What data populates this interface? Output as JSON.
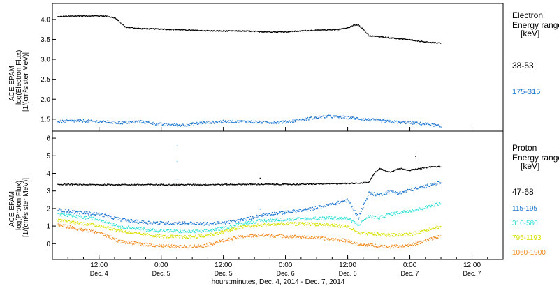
{
  "xaxis": {
    "title": "hours:minutes, Dec.  4, 2014 - Dec.  7, 2014",
    "ticks": [
      {
        "time": "12:00",
        "day": "Dec. 4",
        "h": 12
      },
      {
        "time": "0:00",
        "day": "Dec. 5",
        "h": 24
      },
      {
        "time": "12:00",
        "day": "Dec. 5",
        "h": 36
      },
      {
        "time": "0:00",
        "day": "Dec. 6",
        "h": 48
      },
      {
        "time": "12:00",
        "day": "Dec. 6",
        "h": 60
      },
      {
        "time": "0:00",
        "day": "Dec. 7",
        "h": 72
      },
      {
        "time": "12:00",
        "day": "Dec. 7",
        "h": 84
      }
    ]
  },
  "top_panel": {
    "ylabel_lines": [
      "ACE EPAM",
      "log(Electron Flux)",
      "[1/(cm²s ster MeV)]"
    ],
    "legend_title": [
      "Electron",
      "Energy ranges",
      "[keV]"
    ],
    "legend_items": [
      {
        "label": "38-53",
        "color": "#000000"
      },
      {
        "label": "175-315",
        "color": "#1f77d0"
      }
    ]
  },
  "bottom_panel": {
    "ylabel_lines": [
      "ACE EPAM",
      "log(Proton Flux)",
      "[1/(cm²s ster MeV)]"
    ],
    "legend_title": [
      "Proton",
      "Energy ranges",
      "[keV]"
    ],
    "legend_items": [
      {
        "label": "47-68",
        "color": "#000000"
      },
      {
        "label": "115-195",
        "color": "#1f77d0"
      },
      {
        "label": "310-580",
        "color": "#33e0d8"
      },
      {
        "label": "795-1193",
        "color": "#d8e000"
      },
      {
        "label": "1060-1900",
        "color": "#f08a1e"
      }
    ]
  },
  "chart_data": [
    {
      "type": "scatter",
      "x_units": "hours since Dec. 4, 2014 00:00",
      "xlim": [
        3,
        90
      ],
      "ylim": [
        1.2,
        4.4
      ],
      "yticks": [
        1.5,
        2.0,
        2.5,
        3.0,
        3.5,
        4.0
      ],
      "series": [
        {
          "name": "38-53",
          "color": "#000000",
          "x": [
            4,
            8,
            13,
            15,
            17,
            20,
            24,
            28,
            32,
            36,
            40,
            44,
            48,
            52,
            56,
            58,
            60,
            61,
            62,
            63,
            64,
            66,
            68,
            72,
            76,
            78
          ],
          "y": [
            4.08,
            4.1,
            4.1,
            4.05,
            3.82,
            3.78,
            3.77,
            3.75,
            3.73,
            3.72,
            3.72,
            3.7,
            3.7,
            3.73,
            3.75,
            3.76,
            3.8,
            3.86,
            3.88,
            3.75,
            3.6,
            3.58,
            3.55,
            3.5,
            3.43,
            3.42
          ]
        },
        {
          "name": "175-315",
          "color": "#1f77d0",
          "x": [
            4,
            8,
            12,
            16,
            20,
            24,
            28,
            32,
            36,
            40,
            44,
            48,
            52,
            56,
            60,
            64,
            68,
            72,
            76,
            78
          ],
          "y": [
            1.45,
            1.47,
            1.45,
            1.42,
            1.45,
            1.38,
            1.36,
            1.42,
            1.45,
            1.45,
            1.43,
            1.44,
            1.52,
            1.58,
            1.55,
            1.5,
            1.45,
            1.42,
            1.38,
            1.32
          ]
        }
      ]
    },
    {
      "type": "scatter",
      "x_units": "hours since Dec. 4, 2014 00:00",
      "xlim": [
        3,
        90
      ],
      "ylim": [
        -0.9,
        6.4
      ],
      "yticks": [
        0,
        1,
        2,
        3,
        4,
        5,
        6
      ],
      "series": [
        {
          "name": "47-68",
          "color": "#000000",
          "x": [
            4,
            10,
            20,
            30,
            40,
            50,
            60,
            64,
            65,
            66,
            68,
            70,
            72,
            74,
            76,
            78
          ],
          "y": [
            3.4,
            3.38,
            3.38,
            3.38,
            3.4,
            3.4,
            3.45,
            3.5,
            4.0,
            4.3,
            4.1,
            4.3,
            4.2,
            4.3,
            4.4,
            4.4
          ]
        },
        {
          "name": "115-195",
          "color": "#1f77d0",
          "x": [
            4,
            8,
            12,
            16,
            20,
            24,
            28,
            32,
            36,
            40,
            44,
            48,
            52,
            56,
            60,
            62,
            63,
            64,
            66,
            68,
            70,
            72,
            74,
            76,
            78
          ],
          "y": [
            1.95,
            1.8,
            1.7,
            1.4,
            1.25,
            1.2,
            1.2,
            1.15,
            1.2,
            1.4,
            1.7,
            1.8,
            1.95,
            2.2,
            2.5,
            1.5,
            2.2,
            2.9,
            2.8,
            3.0,
            2.9,
            3.1,
            3.2,
            3.4,
            3.5
          ]
        },
        {
          "name": "310-580",
          "color": "#33e0d8",
          "x": [
            4,
            8,
            12,
            16,
            20,
            24,
            28,
            32,
            36,
            40,
            44,
            48,
            52,
            56,
            60,
            62,
            64,
            66,
            68,
            70,
            72,
            74,
            76,
            78
          ],
          "y": [
            1.7,
            1.55,
            1.4,
            1.0,
            0.85,
            0.75,
            0.72,
            0.72,
            0.9,
            1.2,
            1.35,
            1.4,
            1.45,
            1.5,
            1.45,
            1.1,
            1.6,
            1.5,
            1.7,
            1.8,
            1.9,
            2.0,
            2.2,
            2.3
          ]
        },
        {
          "name": "795-1193",
          "color": "#d8e000",
          "x": [
            4,
            8,
            12,
            16,
            20,
            24,
            28,
            32,
            36,
            40,
            44,
            48,
            52,
            56,
            60,
            62,
            64,
            66,
            68,
            70,
            72,
            74,
            76,
            78
          ],
          "y": [
            1.35,
            1.2,
            1.05,
            0.75,
            0.55,
            0.45,
            0.4,
            0.45,
            0.7,
            1.0,
            1.1,
            1.15,
            1.15,
            1.1,
            1.0,
            0.6,
            0.6,
            0.55,
            0.5,
            0.55,
            0.55,
            0.7,
            0.9,
            1.0
          ]
        },
        {
          "name": "1060-1900",
          "color": "#f08a1e",
          "x": [
            4,
            8,
            12,
            16,
            20,
            24,
            28,
            32,
            36,
            40,
            44,
            48,
            52,
            56,
            60,
            62,
            64,
            66,
            68,
            70,
            72,
            74,
            76,
            78
          ],
          "y": [
            1.1,
            0.85,
            0.65,
            0.15,
            0.0,
            -0.1,
            -0.15,
            -0.1,
            0.2,
            0.45,
            0.5,
            0.45,
            0.4,
            0.3,
            0.2,
            -0.05,
            -0.05,
            -0.1,
            -0.15,
            -0.1,
            -0.05,
            0.1,
            0.3,
            0.45
          ]
        }
      ]
    }
  ]
}
